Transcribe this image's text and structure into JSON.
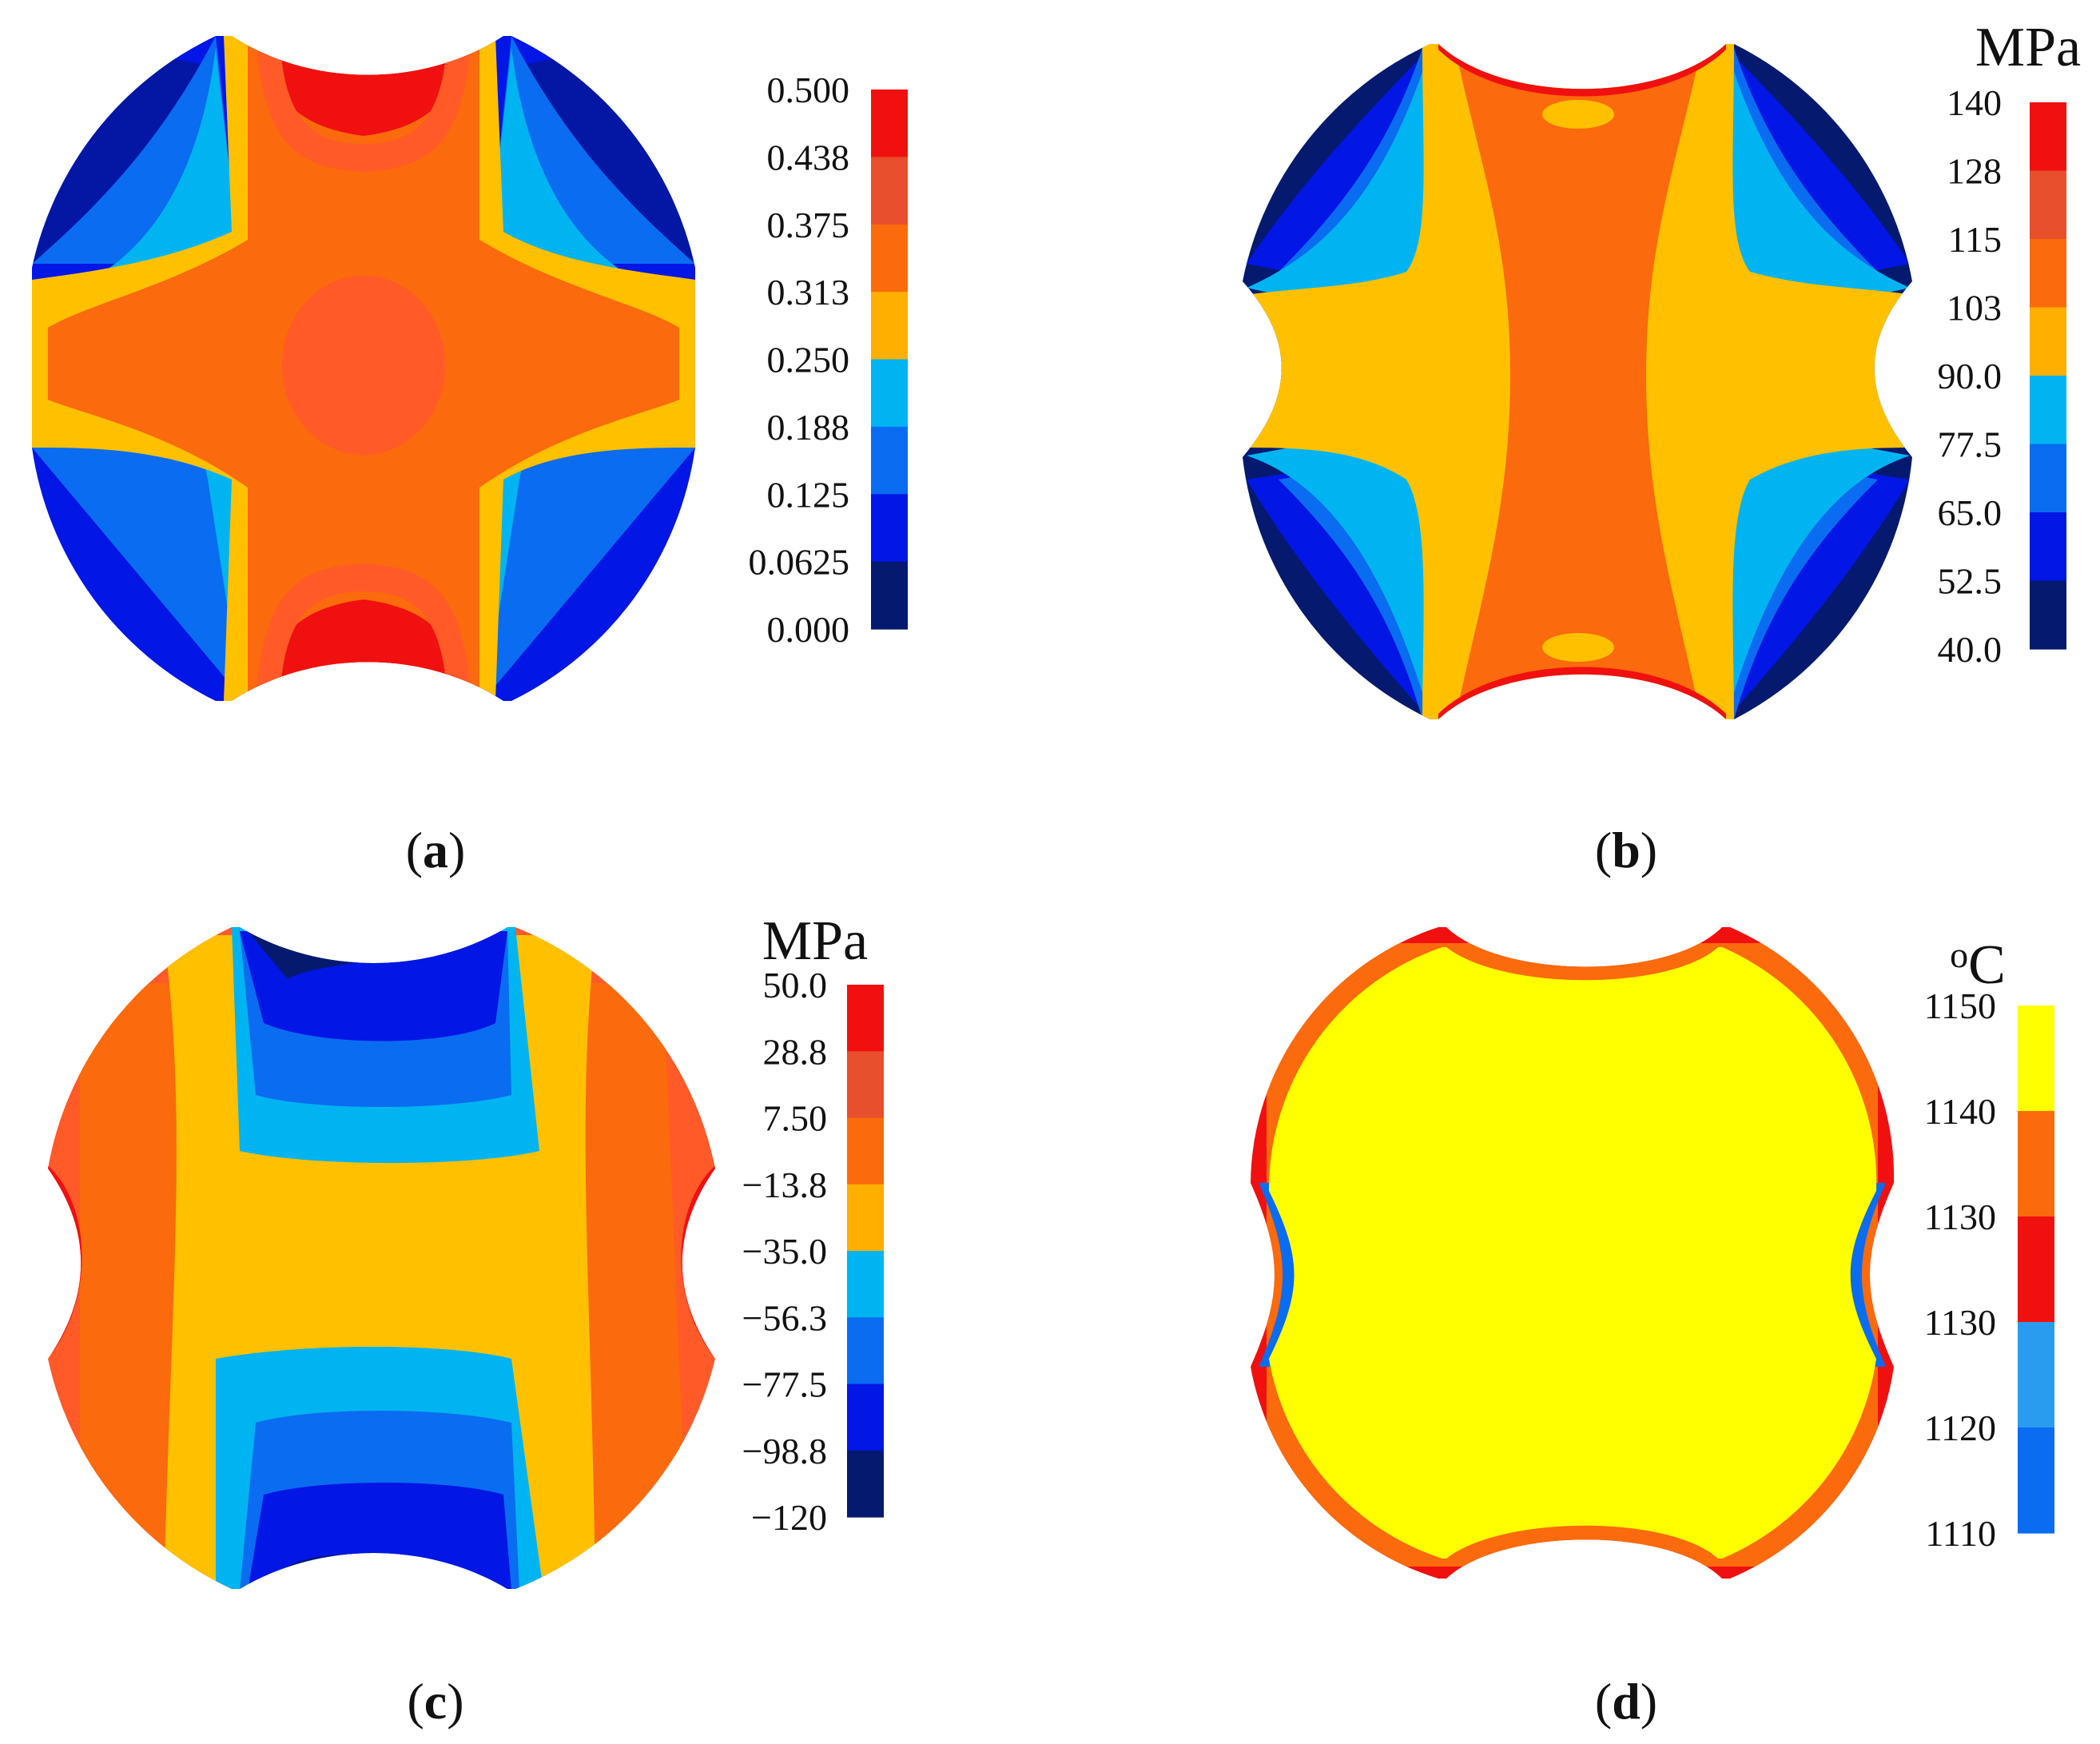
{
  "panels": [
    {
      "id": "a",
      "caption_open": "(",
      "caption_letter": "a",
      "caption_close": ")",
      "unit": "",
      "legend_labels": [
        "0.500",
        "0.438",
        "0.375",
        "0.313",
        "0.250",
        "0.188",
        "0.125",
        "0.0625",
        "0.000"
      ],
      "legend_colors": [
        "#f01010",
        "#e84f2c",
        "#fb6a0c",
        "#ffaf00",
        "#00b4f2",
        "#0a6cf0",
        "#0216e6",
        "#051a6e"
      ]
    },
    {
      "id": "b",
      "caption_open": "(",
      "caption_letter": "b",
      "caption_close": ")",
      "unit": "MPa",
      "legend_labels": [
        "140",
        "128",
        "115",
        "103",
        "90.0",
        "77.5",
        "65.0",
        "52.5",
        "40.0"
      ],
      "legend_colors": [
        "#f01010",
        "#e84f2c",
        "#fb6a0c",
        "#ffaf00",
        "#00b4f2",
        "#0a6cf0",
        "#0216e6",
        "#051a6e"
      ]
    },
    {
      "id": "c",
      "caption_open": "(",
      "caption_letter": "c",
      "caption_close": ")",
      "unit": "MPa",
      "legend_labels": [
        "50.0",
        "28.8",
        "7.50",
        "−13.8",
        "−35.0",
        "−56.3",
        "−77.5",
        "−98.8",
        "−120"
      ],
      "legend_colors": [
        "#f01010",
        "#e84f2c",
        "#fb6a0c",
        "#ffaf00",
        "#00b4f2",
        "#0a6cf0",
        "#0216e6",
        "#051a6e"
      ]
    },
    {
      "id": "d",
      "caption_open": "(",
      "caption_letter": "d",
      "caption_close": ")",
      "unit": "°C",
      "unit_parts": [
        "o",
        "C"
      ],
      "legend_labels": [
        "1150",
        "1140",
        "1130",
        "1130",
        "1120",
        "1110"
      ],
      "legend_colors": [
        "#ffff00",
        "#fb6a0c",
        "#f01010",
        "#2a9cf0",
        "#0a6cf0"
      ]
    }
  ],
  "palette": {
    "dark_blue": "#051a6e",
    "blue": "#0216e6",
    "mid_blue": "#0a6cf0",
    "light_blue": "#00b4f2",
    "yellow_orange": "#ffc000",
    "orange": "#fb6a0c",
    "orange_red": "#ff5a28",
    "red": "#f01010",
    "yellow": "#ffff00"
  }
}
